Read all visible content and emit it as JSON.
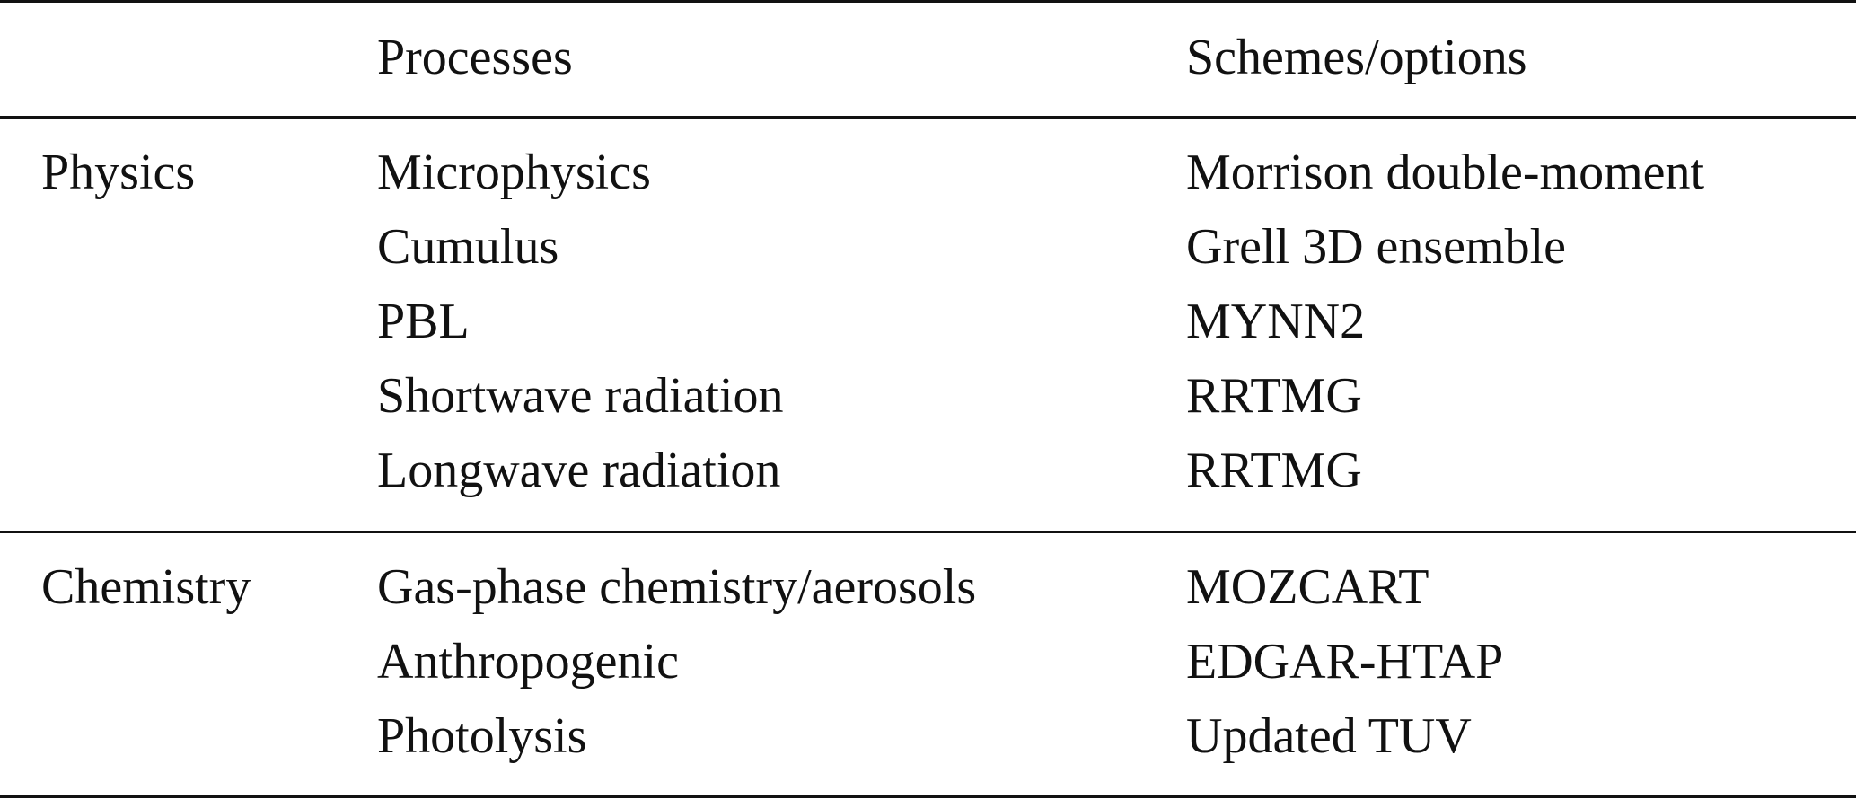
{
  "header": {
    "col1": "",
    "col2": "Processes",
    "col3": "Schemes/options"
  },
  "groups": [
    {
      "category": "Physics",
      "rows": [
        {
          "process": "Microphysics",
          "scheme": "Morrison double-moment"
        },
        {
          "process": "Cumulus",
          "scheme": "Grell 3D ensemble"
        },
        {
          "process": "PBL",
          "scheme": "MYNN2"
        },
        {
          "process": "Shortwave radiation",
          "scheme": "RRTMG"
        },
        {
          "process": "Longwave radiation",
          "scheme": "RRTMG"
        }
      ]
    },
    {
      "category": "Chemistry",
      "rows": [
        {
          "process": "Gas-phase chemistry/aerosols",
          "scheme": "MOZCART"
        },
        {
          "process": "Anthropogenic",
          "scheme": "EDGAR-HTAP"
        },
        {
          "process": "Photolysis",
          "scheme": "Updated TUV"
        }
      ]
    }
  ]
}
